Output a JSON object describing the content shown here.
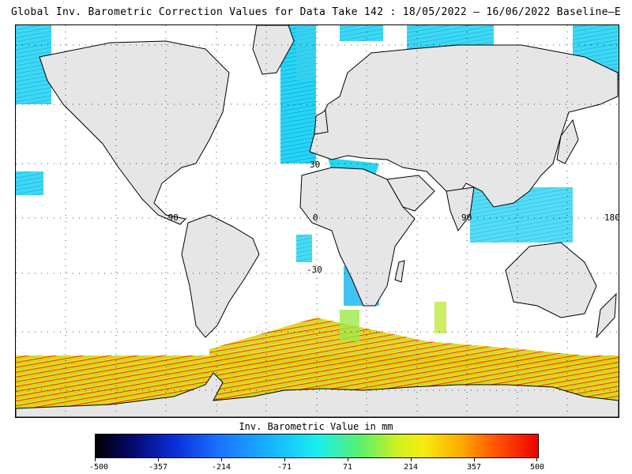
{
  "title": "Global Inv. Barometric Correction Values for Data Take 142 : 18/05/2022 – 16/06/2022 Baseline–E",
  "map": {
    "land_color": "#e6e6e6",
    "ocean_color": "#ffffff",
    "lon_labels": [
      "-90",
      "0",
      "90",
      "180"
    ],
    "lat_labels": [
      "30",
      "-30"
    ]
  },
  "colorbar": {
    "title": "Inv. Barometric Value in mm",
    "ticks": [
      "-500",
      "-357",
      "-214",
      "-71",
      "71",
      "214",
      "357",
      "500"
    ],
    "min": -500,
    "max": 500
  }
}
